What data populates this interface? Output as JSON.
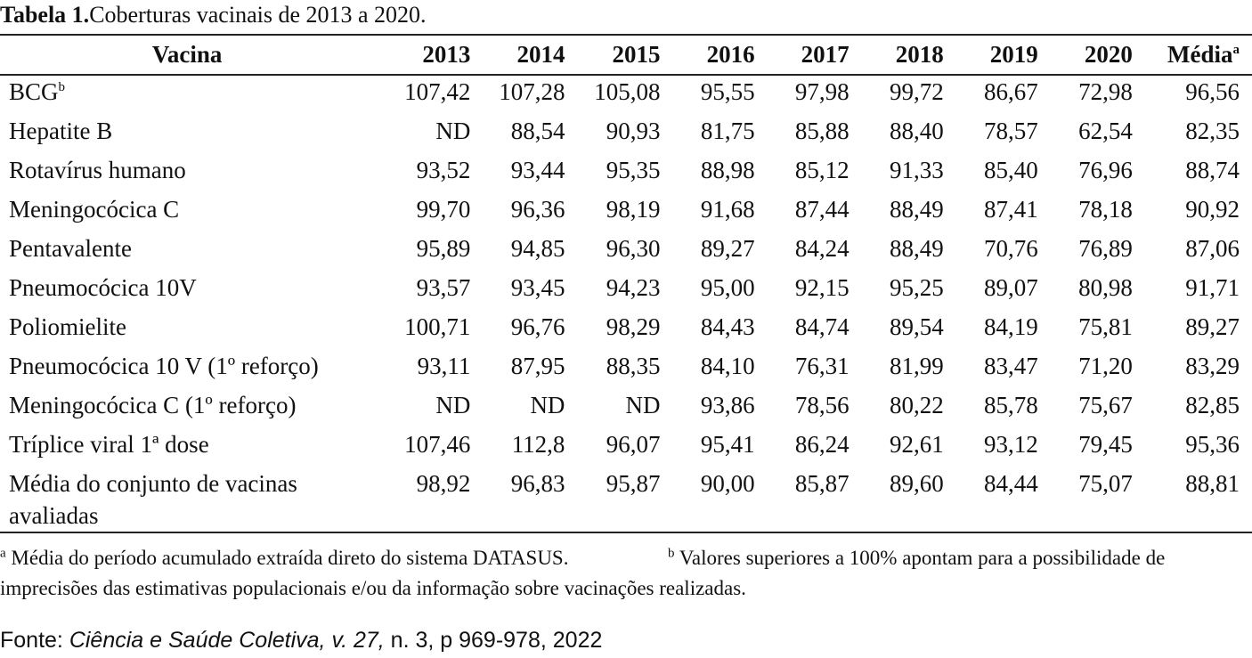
{
  "caption": {
    "label": "Tabela 1.",
    "text": "Coberturas vacinais de 2013 a 2020."
  },
  "table": {
    "headers": [
      "Vacina",
      "2013",
      "2014",
      "2015",
      "2016",
      "2017",
      "2018",
      "2019",
      "2020",
      "Média"
    ],
    "header_media_sup": "a",
    "rows": [
      {
        "name": "BCG",
        "sup": "b",
        "values": [
          "107,42",
          "107,28",
          "105,08",
          "95,55",
          "97,98",
          "99,72",
          "86,67",
          "72,98",
          "96,56"
        ]
      },
      {
        "name": "Hepatite B",
        "sup": "",
        "values": [
          "ND",
          "88,54",
          "90,93",
          "81,75",
          "85,88",
          "88,40",
          "78,57",
          "62,54",
          "82,35"
        ]
      },
      {
        "name": "Rotavírus humano",
        "sup": "",
        "values": [
          "93,52",
          "93,44",
          "95,35",
          "88,98",
          "85,12",
          "91,33",
          "85,40",
          "76,96",
          "88,74"
        ]
      },
      {
        "name": "Meningocócica C",
        "sup": "",
        "values": [
          "99,70",
          "96,36",
          "98,19",
          "91,68",
          "87,44",
          "88,49",
          "87,41",
          "78,18",
          "90,92"
        ]
      },
      {
        "name": "Pentavalente",
        "sup": "",
        "values": [
          "95,89",
          "94,85",
          "96,30",
          "89,27",
          "84,24",
          "88,49",
          "70,76",
          "76,89",
          "87,06"
        ]
      },
      {
        "name": "Pneumocócica 10V",
        "sup": "",
        "values": [
          "93,57",
          "93,45",
          "94,23",
          "95,00",
          "92,15",
          "95,25",
          "89,07",
          "80,98",
          "91,71"
        ]
      },
      {
        "name": "Poliomielite",
        "sup": "",
        "values": [
          "100,71",
          "96,76",
          "98,29",
          "84,43",
          "84,74",
          "89,54",
          "84,19",
          "75,81",
          "89,27"
        ]
      },
      {
        "name": "Pneumocócica 10 V (1º reforço)",
        "sup": "",
        "values": [
          "93,11",
          "87,95",
          "88,35",
          "84,10",
          "76,31",
          "81,99",
          "83,47",
          "71,20",
          "83,29"
        ]
      },
      {
        "name": "Meningocócica C (1º reforço)",
        "sup": "",
        "values": [
          "ND",
          "ND",
          "ND",
          "93,86",
          "78,56",
          "80,22",
          "85,78",
          "75,67",
          "82,85"
        ]
      },
      {
        "name": "Tríplice viral 1ª dose",
        "sup": "",
        "values": [
          "107,46",
          "112,8",
          "96,07",
          "95,41",
          "86,24",
          "92,61",
          "93,12",
          "79,45",
          "95,36"
        ]
      },
      {
        "name": "Média do conjunto de vacinas avaliadas",
        "sup": "",
        "values": [
          "98,92",
          "96,83",
          "95,87",
          "90,00",
          "85,87",
          "89,60",
          "84,44",
          "75,07",
          "88,81"
        ]
      }
    ]
  },
  "notes": {
    "a_mark": "a",
    "a_text": "Média do período acumulado extraída direto do sistema DATASUS.",
    "b_mark": "b",
    "b_text_line1": "Valores superiores a 100% apontam para a possibilidade de",
    "b_text_line2": "imprecisões das estimativas populacionais e/ou da informação sobre vacinações realizadas."
  },
  "source": {
    "prefix": "Fonte: ",
    "journal": "Ciência e Saúde Coletiva, v. 27,",
    "rest": " n. 3, p 969-978, 2022"
  }
}
